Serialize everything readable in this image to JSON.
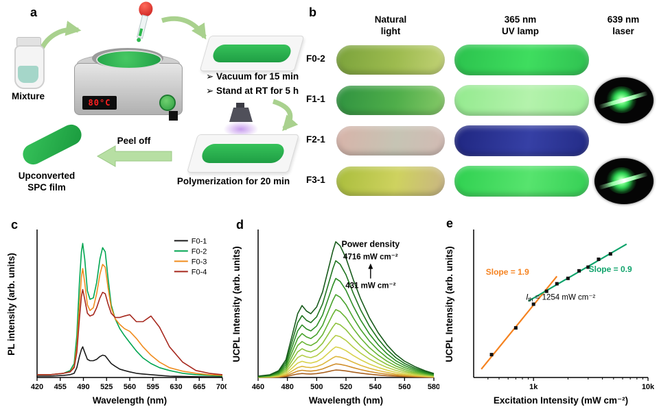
{
  "panel_a": {
    "label": "a",
    "mixture_label": "Mixture",
    "hotplate_display": "80°C",
    "bullet_1": "➢ Vacuum for 15 min",
    "bullet_2": "➢ Stand at RT for 5 h",
    "peel_off_label": "Peel off",
    "polymerization_label": "Polymerization for 20 min",
    "film_label_1": "Upconverted",
    "film_label_2": "SPC film"
  },
  "panel_b": {
    "label": "b",
    "headers": {
      "natural_1": "Natural",
      "natural_2": "light",
      "uv_1": "365 nm",
      "uv_2": "UV lamp",
      "laser_1": "639 nm",
      "laser_2": "laser"
    },
    "rows": [
      {
        "label": "F0-2",
        "natural_colors": [
          "#7aa23b",
          "#9dbb4f",
          "#c2d276"
        ],
        "uv_colors": [
          "#2bc24d",
          "#3fdd5f",
          "#2fc151"
        ],
        "laser": false
      },
      {
        "label": "F1-1",
        "natural_colors": [
          "#2f9240",
          "#4fae4a",
          "#86c968"
        ],
        "uv_colors": [
          "#93ea8e",
          "#b4f2ac",
          "#9dec98"
        ],
        "laser": true
      },
      {
        "label": "F2-1",
        "natural_colors": [
          "#d8b3a9",
          "#c6c4b4",
          "#d2bab3"
        ],
        "uv_colors": [
          "#1f2680",
          "#3640a5",
          "#232b86"
        ],
        "laser": false
      },
      {
        "label": "F3-1",
        "natural_colors": [
          "#a9bd3c",
          "#ced25f",
          "#c9b583"
        ],
        "uv_colors": [
          "#2fd050",
          "#57e46e",
          "#35cf55"
        ],
        "laser": true
      }
    ]
  },
  "chart_data": [
    {
      "id": "c",
      "panel_label": "c",
      "type": "line",
      "xlabel": "Wavelength (nm)",
      "ylabel": "PL intensity (arb. units)",
      "xlim": [
        420,
        700
      ],
      "xticks": [
        420,
        455,
        490,
        525,
        560,
        595,
        630,
        665,
        700
      ],
      "ylim": [
        0,
        1.05
      ],
      "legend": {
        "fx": 0.74,
        "fy": 0.03
      },
      "x": [
        420,
        440,
        460,
        470,
        476,
        480,
        484,
        487,
        489,
        492,
        496,
        500,
        505,
        510,
        515,
        519,
        523,
        527,
        532,
        538,
        545,
        552,
        560,
        570,
        580,
        592,
        605,
        620,
        640,
        660,
        680,
        700
      ],
      "series": [
        {
          "name": "F0-1",
          "color": "#1a1a1a",
          "y": [
            0.01,
            0.01,
            0.015,
            0.02,
            0.03,
            0.07,
            0.15,
            0.2,
            0.22,
            0.18,
            0.13,
            0.12,
            0.12,
            0.13,
            0.15,
            0.16,
            0.155,
            0.13,
            0.1,
            0.08,
            0.06,
            0.05,
            0.04,
            0.03,
            0.025,
            0.02,
            0.015,
            0.01,
            0.008,
            0.006,
            0.005,
            0.004
          ]
        },
        {
          "name": "F0-2",
          "color": "#00a550",
          "y": [
            0.02,
            0.02,
            0.03,
            0.05,
            0.1,
            0.3,
            0.68,
            0.9,
            0.96,
            0.85,
            0.62,
            0.56,
            0.57,
            0.68,
            0.85,
            0.93,
            0.9,
            0.72,
            0.52,
            0.42,
            0.35,
            0.3,
            0.25,
            0.19,
            0.14,
            0.1,
            0.07,
            0.05,
            0.03,
            0.02,
            0.015,
            0.01
          ]
        },
        {
          "name": "F0-3",
          "color": "#f08c1e",
          "y": [
            0.02,
            0.02,
            0.03,
            0.04,
            0.08,
            0.22,
            0.52,
            0.72,
            0.78,
            0.68,
            0.52,
            0.48,
            0.5,
            0.6,
            0.74,
            0.81,
            0.79,
            0.65,
            0.5,
            0.42,
            0.38,
            0.35,
            0.33,
            0.28,
            0.22,
            0.16,
            0.11,
            0.07,
            0.045,
            0.03,
            0.02,
            0.015
          ]
        },
        {
          "name": "F0-4",
          "color": "#a6281e",
          "y": [
            0.02,
            0.02,
            0.03,
            0.04,
            0.07,
            0.18,
            0.42,
            0.58,
            0.63,
            0.56,
            0.46,
            0.44,
            0.45,
            0.5,
            0.57,
            0.61,
            0.6,
            0.53,
            0.46,
            0.43,
            0.43,
            0.44,
            0.45,
            0.4,
            0.4,
            0.44,
            0.36,
            0.22,
            0.11,
            0.05,
            0.03,
            0.02
          ]
        }
      ]
    },
    {
      "id": "d",
      "panel_label": "d",
      "type": "line",
      "xlabel": "Wavelength (nm)",
      "ylabel": "UCPL Intensity (arb. units)",
      "xlim": [
        460,
        580
      ],
      "xticks": [
        460,
        480,
        500,
        520,
        540,
        560,
        580
      ],
      "ylim": [
        0,
        1.08
      ],
      "power_note": {
        "title": "Power density",
        "top": "4716 mW cm⁻²",
        "bottom": "431 mW cm⁻²",
        "fx": 0.64,
        "fy": 0.11
      },
      "x": [
        460,
        468,
        474,
        479,
        483,
        487,
        490,
        493,
        496,
        500,
        504,
        508,
        511,
        513,
        516,
        520,
        525,
        530,
        536,
        542,
        548,
        554,
        560,
        567,
        574,
        580
      ],
      "shape": [
        0.01,
        0.02,
        0.05,
        0.13,
        0.3,
        0.47,
        0.53,
        0.49,
        0.47,
        0.52,
        0.63,
        0.8,
        0.93,
        1.0,
        0.97,
        0.88,
        0.72,
        0.58,
        0.44,
        0.33,
        0.24,
        0.17,
        0.12,
        0.08,
        0.05,
        0.03
      ],
      "series": [
        {
          "scale": 0.055,
          "color": "#a9611e"
        },
        {
          "scale": 0.1,
          "color": "#d08e2a"
        },
        {
          "scale": 0.155,
          "color": "#ddb83c"
        },
        {
          "scale": 0.225,
          "color": "#d8d24b"
        },
        {
          "scale": 0.31,
          "color": "#b5cd45"
        },
        {
          "scale": 0.4,
          "color": "#8ec23c"
        },
        {
          "scale": 0.5,
          "color": "#68b433"
        },
        {
          "scale": 0.61,
          "color": "#47a22b"
        },
        {
          "scale": 0.73,
          "color": "#2c8d24"
        },
        {
          "scale": 0.86,
          "color": "#1f741f"
        },
        {
          "scale": 1.0,
          "color": "#175a1b"
        }
      ]
    },
    {
      "id": "e",
      "panel_label": "e",
      "type": "scatter",
      "xlabel": "Excitation Intensity (mW cm⁻²)",
      "ylabel": "UCPL Intensity (arb. units)",
      "xscale": "log",
      "yscale": "log",
      "xlim": [
        300,
        10000
      ],
      "ylim": [
        2,
        200
      ],
      "xticks": [
        {
          "v": 1000,
          "label": "1k"
        },
        {
          "v": 10000,
          "label": "10k"
        }
      ],
      "minor_xticks": [
        400,
        500,
        600,
        700,
        800,
        900,
        2000,
        3000,
        4000,
        5000,
        6000,
        7000,
        8000,
        9000
      ],
      "points": {
        "color": "#111111",
        "x": [
          430,
          700,
          1000,
          1300,
          1600,
          2000,
          2500,
          3000,
          3700,
          4700
        ],
        "y": [
          4.1,
          9.5,
          20,
          30,
          38,
          45,
          57,
          64,
          82,
          97
        ]
      },
      "lines": [
        {
          "color": "#f5821f",
          "x": [
            350,
            1600
          ],
          "y": [
            2.6,
            48
          ],
          "label": "Slope = 1.9"
        },
        {
          "color": "#0fa36b",
          "x": [
            900,
            6500
          ],
          "y": [
            22,
            132
          ],
          "label": "Slope = 0.9"
        }
      ],
      "annotations": [
        {
          "text": "Slope = 1.9",
          "color": "#f5821f",
          "fx": 0.07,
          "fy": 0.3,
          "bold": true
        },
        {
          "text": "Slope = 0.9",
          "color": "#0fa36b",
          "fx": 0.66,
          "fy": 0.28,
          "bold": true
        }
      ],
      "threshold": {
        "italic": "I",
        "sub": "th",
        "rest": " = 1254 mW cm⁻²",
        "fx": 0.3,
        "fy": 0.47
      }
    }
  ]
}
